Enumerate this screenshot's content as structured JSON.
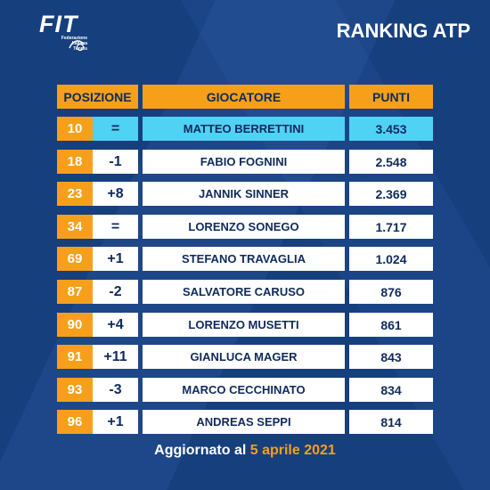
{
  "logo": {
    "text": "FIT",
    "sub1": "Federazione",
    "sub2": "Italiana",
    "sub3": "Tennis"
  },
  "title": "RANKING ATP",
  "headers": {
    "posizione": "POSIZIONE",
    "giocatore": "GIOCATORE",
    "punti": "PUNTI"
  },
  "rows": [
    {
      "rank": "10",
      "move": "=",
      "name": "MATTEO BERRETTINI",
      "points": "3.453",
      "highlight": true
    },
    {
      "rank": "18",
      "move": "-1",
      "name": "FABIO FOGNINI",
      "points": "2.548"
    },
    {
      "rank": "23",
      "move": "+8",
      "name": "JANNIK SINNER",
      "points": "2.369"
    },
    {
      "rank": "34",
      "move": "=",
      "name": "LORENZO SONEGO",
      "points": "1.717"
    },
    {
      "rank": "69",
      "move": "+1",
      "name": "STEFANO TRAVAGLIA",
      "points": "1.024"
    },
    {
      "rank": "87",
      "move": "-2",
      "name": "SALVATORE CARUSO",
      "points": "876"
    },
    {
      "rank": "90",
      "move": "+4",
      "name": "LORENZO MUSETTI",
      "points": "861"
    },
    {
      "rank": "91",
      "move": "+11",
      "name": "GIANLUCA MAGER",
      "points": "843"
    },
    {
      "rank": "93",
      "move": "-3",
      "name": "MARCO CECCHINATO",
      "points": "834"
    },
    {
      "rank": "96",
      "move": "+1",
      "name": "ANDREAS SEPPI",
      "points": "814"
    }
  ],
  "footer": {
    "prefix": "Aggiornato al",
    "date": "5 aprile 2021"
  },
  "colors": {
    "background": "#163f7e",
    "accent": "#f6a01a",
    "highlight": "#4fd2f4"
  }
}
